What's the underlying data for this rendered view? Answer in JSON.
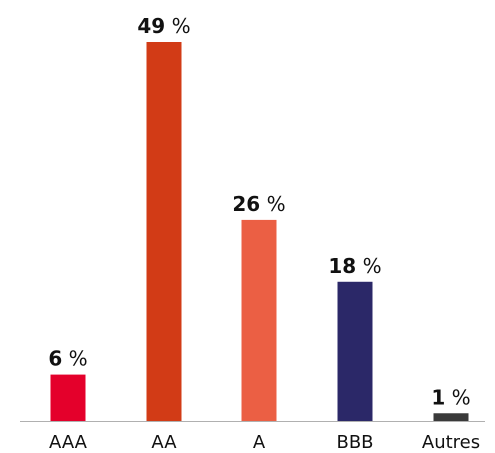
{
  "chart_data": {
    "type": "bar",
    "title": "",
    "xlabel": "",
    "ylabel": "",
    "unit": "%",
    "categories": [
      "AAA",
      "AA",
      "A",
      "BBB",
      "Autres"
    ],
    "values": [
      6,
      49,
      26,
      18,
      1
    ],
    "colors": [
      "#E4002B",
      "#D23B16",
      "#EB5F44",
      "#2B2868",
      "#3A3A3A"
    ],
    "axis_color": "#B0B0B0",
    "ylim": [
      0,
      49
    ],
    "grid": false,
    "legend": "none"
  }
}
